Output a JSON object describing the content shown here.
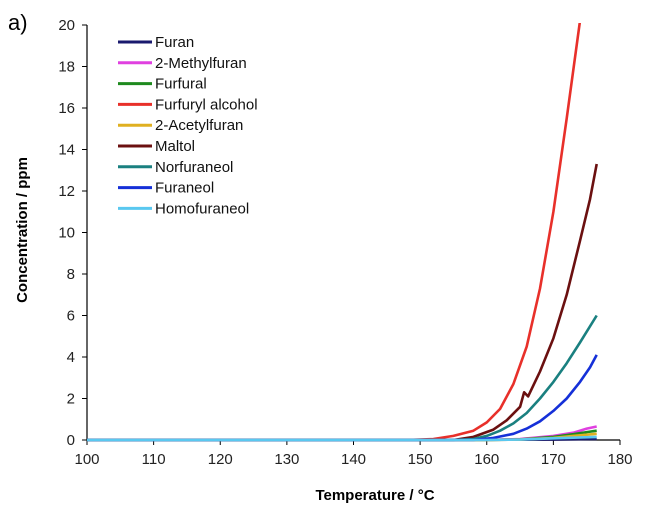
{
  "panel_label": "a)",
  "chart_data": {
    "type": "line",
    "title": "",
    "xlabel": "Temperature / °C",
    "ylabel": "Concentration / ppm",
    "xlim": [
      100,
      180
    ],
    "ylim": [
      0,
      20
    ],
    "xticks": [
      100,
      110,
      120,
      130,
      140,
      150,
      160,
      170,
      180
    ],
    "yticks": [
      0,
      2,
      4,
      6,
      8,
      10,
      12,
      14,
      16,
      18,
      20
    ],
    "grid": false,
    "legend_position": "top-left",
    "series": [
      {
        "name": "Furan",
        "color": "#1a1a6e",
        "x": [
          100,
          150,
          160,
          170,
          176.5
        ],
        "y": [
          0,
          0,
          0.01,
          0.02,
          0.05
        ]
      },
      {
        "name": "2-Methylfuran",
        "color": "#e040e0",
        "x": [
          100,
          160,
          165,
          170,
          173,
          175,
          176.5
        ],
        "y": [
          0,
          0,
          0.05,
          0.2,
          0.35,
          0.55,
          0.65
        ]
      },
      {
        "name": "Furfural",
        "color": "#1e8a1e",
        "x": [
          100,
          160,
          165,
          170,
          173,
          175,
          176.5
        ],
        "y": [
          0,
          0,
          0.03,
          0.15,
          0.28,
          0.38,
          0.45
        ]
      },
      {
        "name": "Furfuryl alcohol",
        "color": "#e8302a",
        "x": [
          100,
          148,
          152,
          155,
          158,
          160,
          162,
          164,
          166,
          168,
          170,
          172,
          174
        ],
        "y": [
          0,
          0,
          0.05,
          0.2,
          0.45,
          0.85,
          1.5,
          2.7,
          4.5,
          7.3,
          11.0,
          15.5,
          20.2
        ]
      },
      {
        "name": "2-Acetylfuran",
        "color": "#e0b020",
        "x": [
          100,
          160,
          165,
          170,
          173,
          176.5
        ],
        "y": [
          0,
          0,
          0.02,
          0.1,
          0.2,
          0.3
        ]
      },
      {
        "name": "Maltol",
        "color": "#6b1010",
        "x": [
          100,
          155,
          158,
          161,
          163,
          165,
          165.6,
          166.2,
          168,
          170,
          172,
          174,
          175.5,
          176.5
        ],
        "y": [
          0,
          0,
          0.15,
          0.5,
          0.95,
          1.6,
          2.3,
          2.1,
          3.3,
          4.9,
          7.0,
          9.6,
          11.6,
          13.3
        ]
      },
      {
        "name": "Norfuraneol",
        "color": "#1a8080",
        "x": [
          100,
          155,
          158,
          160,
          162,
          164,
          166,
          168,
          170,
          172,
          174,
          176.5
        ],
        "y": [
          0,
          0,
          0.05,
          0.2,
          0.45,
          0.8,
          1.3,
          2.0,
          2.8,
          3.7,
          4.7,
          6.0
        ]
      },
      {
        "name": "Furaneol",
        "color": "#1530d8",
        "x": [
          100,
          158,
          161,
          164,
          166,
          168,
          170,
          172,
          174,
          175.5,
          176.5
        ],
        "y": [
          0,
          0,
          0.1,
          0.3,
          0.55,
          0.9,
          1.4,
          2.0,
          2.8,
          3.5,
          4.1
        ]
      },
      {
        "name": "Homofuraneol",
        "color": "#5ac8f0",
        "x": [
          100,
          160,
          165,
          170,
          176.5
        ],
        "y": [
          0,
          0,
          0.02,
          0.08,
          0.15
        ]
      }
    ]
  }
}
